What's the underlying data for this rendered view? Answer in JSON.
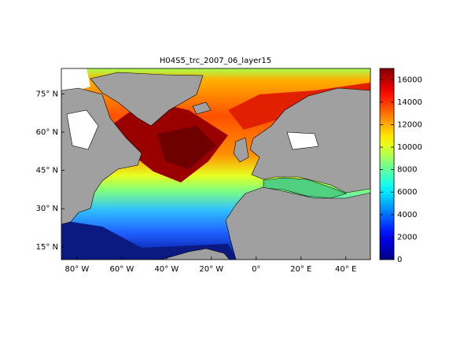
{
  "chart_data": {
    "type": "map",
    "title": "H04S5_trc_2007_06_layer15",
    "xlim": [
      -87,
      51
    ],
    "ylim": [
      10,
      85
    ],
    "xticks": [
      {
        "value": -80,
        "label": "80° W"
      },
      {
        "value": -60,
        "label": "60° W"
      },
      {
        "value": -40,
        "label": "40° W"
      },
      {
        "value": -20,
        "label": "20° W"
      },
      {
        "value": 0,
        "label": "0°"
      },
      {
        "value": 20,
        "label": "20° E"
      },
      {
        "value": 40,
        "label": "40° E"
      }
    ],
    "yticks": [
      {
        "value": 15,
        "label": "15° N"
      },
      {
        "value": 30,
        "label": "30° N"
      },
      {
        "value": 45,
        "label": "45° N"
      },
      {
        "value": 60,
        "label": "60° N"
      },
      {
        "value": 75,
        "label": "75° N"
      }
    ],
    "colorbar": {
      "colormap": "jet",
      "clim": [
        0,
        17000
      ],
      "ticks": [
        0,
        2000,
        4000,
        6000,
        8000,
        10000,
        12000,
        14000,
        16000
      ]
    }
  }
}
